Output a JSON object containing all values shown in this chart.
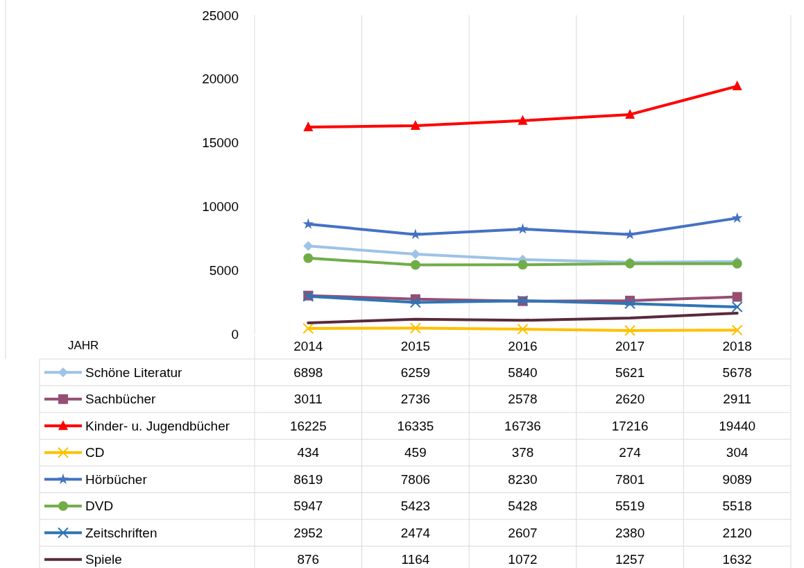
{
  "chart_data": {
    "type": "line",
    "annotations": [
      "JAHR"
    ],
    "categories": [
      "2014",
      "2015",
      "2016",
      "2017",
      "2018"
    ],
    "ylim": [
      0,
      25000
    ],
    "yticks": [
      0,
      5000,
      10000,
      15000,
      20000,
      25000
    ],
    "grid": "x",
    "legend": "bottom",
    "data_labels": true,
    "series": [
      {
        "name": "Schöne Literatur",
        "color": "#9dc3e6",
        "marker": "diamond",
        "values": [
          6898,
          6259,
          5840,
          5621,
          5678
        ]
      },
      {
        "name": "Sachbücher",
        "color": "#954f72",
        "marker": "square",
        "values": [
          3011,
          2736,
          2578,
          2620,
          2911
        ]
      },
      {
        "name": "Kinder- u. Jugendbücher",
        "color": "#ff0000",
        "marker": "triangle",
        "values": [
          16225,
          16335,
          16736,
          17216,
          19440
        ]
      },
      {
        "name": "CD",
        "color": "#ffc000",
        "marker": "cross",
        "values": [
          434,
          459,
          378,
          274,
          304
        ]
      },
      {
        "name": "Hörbücher",
        "color": "#4472c4",
        "marker": "star",
        "values": [
          8619,
          7806,
          8230,
          7801,
          9089
        ]
      },
      {
        "name": "DVD",
        "color": "#70ad47",
        "marker": "circle",
        "values": [
          5947,
          5423,
          5428,
          5519,
          5518
        ]
      },
      {
        "name": "Zeitschriften",
        "color": "#2e75b6",
        "marker": "cross",
        "values": [
          2952,
          2474,
          2607,
          2380,
          2120
        ]
      },
      {
        "name": "Spiele",
        "color": "#582a3c",
        "marker": "none",
        "values": [
          876,
          1164,
          1072,
          1257,
          1632
        ]
      }
    ]
  }
}
